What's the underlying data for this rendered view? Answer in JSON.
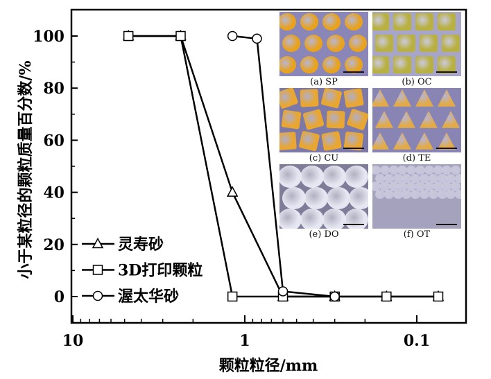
{
  "chart_data": {
    "type": "line",
    "xlabel": "颗粒粒径/mm",
    "ylabel": "小于某粒径的颗粒质量百分数/%",
    "xscale": "log",
    "xlim": [
      15,
      0.06
    ],
    "ylim": [
      -10,
      110
    ],
    "x_reversed": true,
    "xticks": [
      10,
      1,
      0.1
    ],
    "xtick_labels": [
      "10",
      "1",
      "0.1"
    ],
    "yticks": [
      0,
      20,
      40,
      60,
      80,
      100
    ],
    "ytick_labels": [
      "0",
      "20",
      "40",
      "60",
      "80",
      "100"
    ],
    "legend_position": "bottom-left",
    "series": [
      {
        "name": "灵寿砂",
        "marker": "triangle",
        "x": [
          4.75,
          2.36,
          1.18,
          0.6,
          0.3,
          0.15,
          0.075
        ],
        "y": [
          100,
          100,
          40,
          0,
          0,
          0,
          0
        ]
      },
      {
        "name": "3D打印颗粒",
        "marker": "square",
        "x": [
          4.75,
          2.36,
          1.18,
          0.6,
          0.3,
          0.15,
          0.075
        ],
        "y": [
          100,
          100,
          0,
          0,
          0,
          0,
          0
        ]
      },
      {
        "name": "渥太华砂",
        "marker": "circle",
        "x": [
          1.18,
          0.85,
          0.6,
          0.3
        ],
        "y": [
          100,
          99,
          2,
          0
        ]
      }
    ]
  },
  "insets": [
    {
      "label": "(a) SP",
      "color": "#e8a21c",
      "bg": "#8a86b8"
    },
    {
      "label": "(b) OC",
      "color": "#b8b040",
      "bg": "#a8a6c8"
    },
    {
      "label": "(c) CU",
      "color": "#e9a630",
      "bg": "#7c78a8"
    },
    {
      "label": "(d) TE",
      "color": "#e3ab48",
      "bg": "#8884b4"
    },
    {
      "label": "(e) DO",
      "color": "#e6e6f2",
      "bg": "#7e7c98"
    },
    {
      "label": "(f) OT",
      "color": "#c6c4dc",
      "bg": "#a4a2bc"
    }
  ]
}
